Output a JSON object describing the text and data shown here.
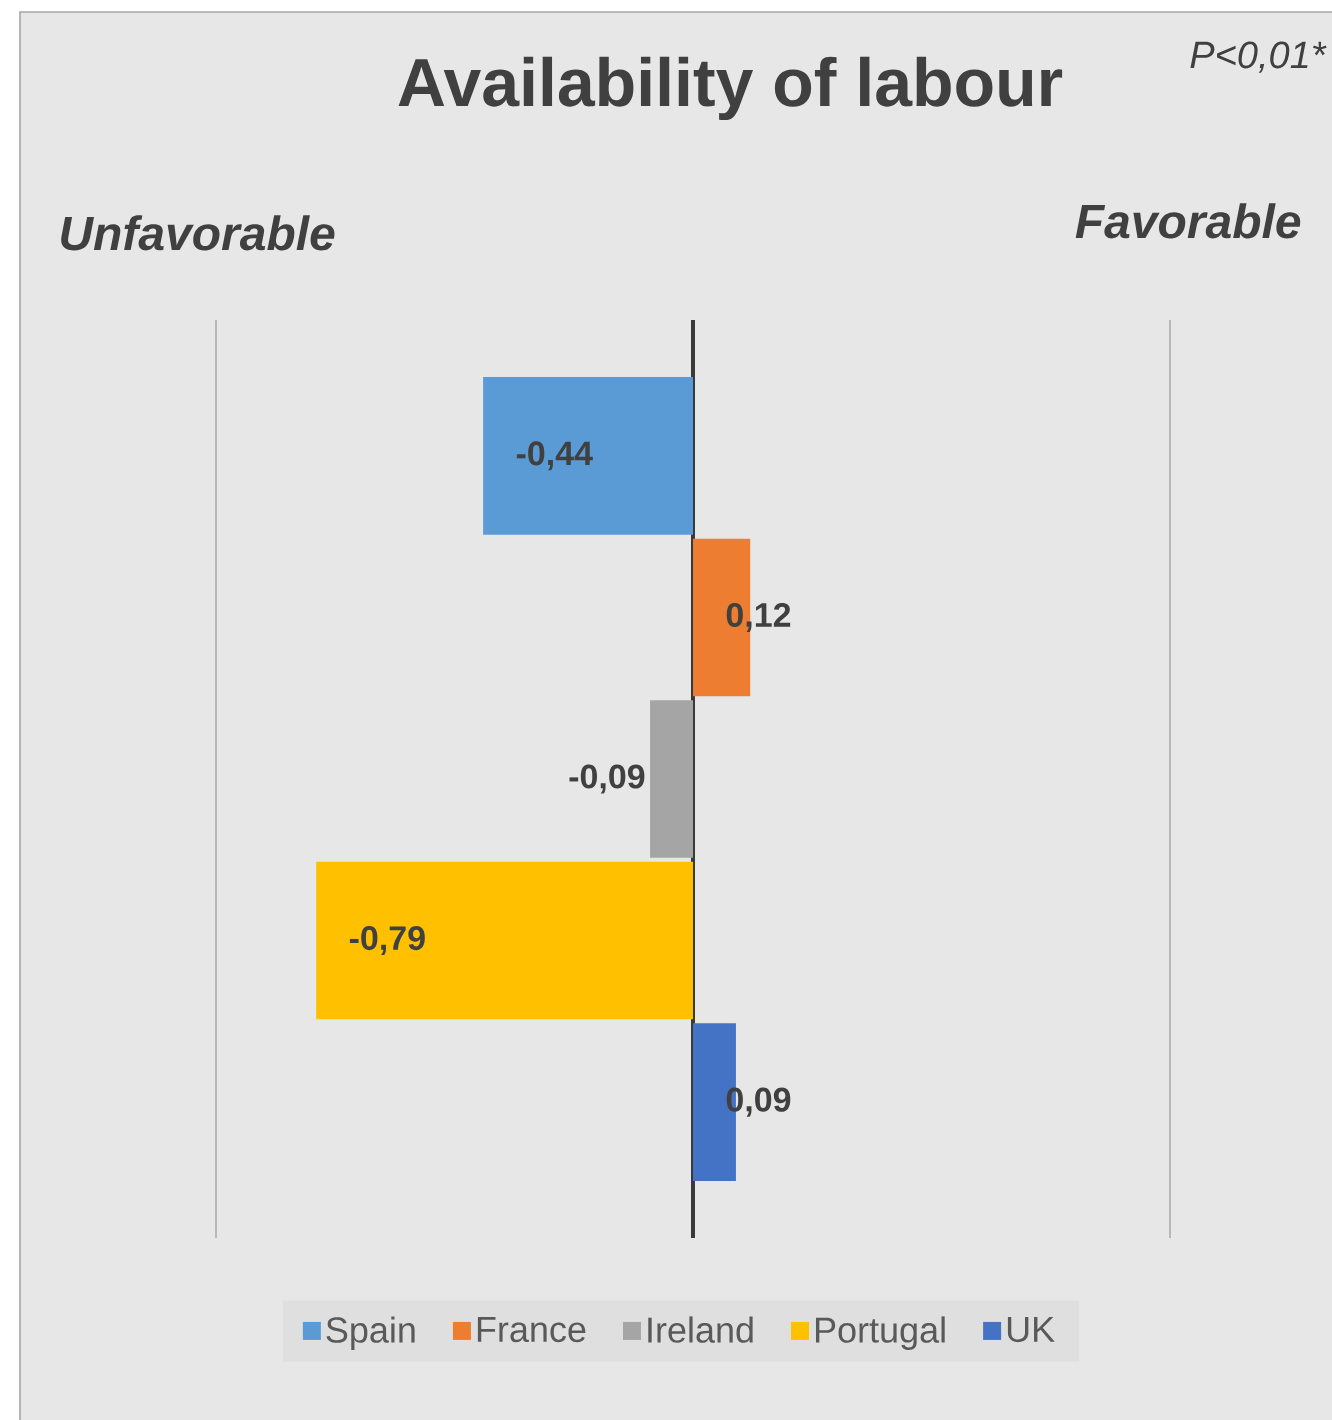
{
  "chart_data": {
    "type": "bar",
    "orientation": "horizontal",
    "title": "Availability of labour",
    "annotations": [
      "Unfavorable",
      "Favorable",
      "P<0,01*"
    ],
    "categories": [
      null
    ],
    "series": [
      {
        "name": "Spain",
        "color": "#5b9bd5",
        "values": [
          -0.44
        ],
        "value_labels": [
          "-0,44"
        ]
      },
      {
        "name": "France",
        "color": "#ed7d31",
        "values": [
          0.12
        ],
        "value_labels": [
          "0,12"
        ]
      },
      {
        "name": "Ireland",
        "color": "#a5a5a5",
        "values": [
          -0.09
        ],
        "value_labels": [
          "-0,09"
        ]
      },
      {
        "name": "Portugal",
        "color": "#ffc000",
        "values": [
          -0.79
        ],
        "value_labels": [
          "-0,79"
        ]
      },
      {
        "name": "UK",
        "color": "#4472c4",
        "values": [
          0.09
        ],
        "value_labels": [
          "0,09"
        ]
      }
    ],
    "xlim": [
      -1,
      1
    ],
    "xticks": [
      {
        "value": -1,
        "label": null
      },
      {
        "value": 0,
        "label": null
      },
      {
        "value": 1,
        "label": null
      }
    ],
    "grid": "x",
    "legend": "bottom"
  }
}
